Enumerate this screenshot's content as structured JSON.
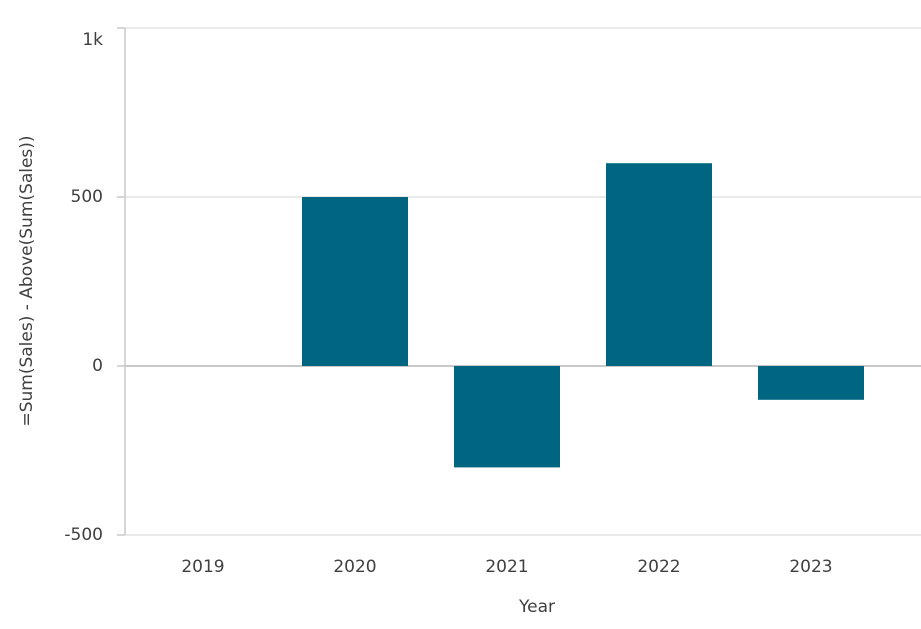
{
  "chart_data": {
    "type": "bar",
    "x_label": "Year",
    "y_label": "=Sum(Sales) - Above(Sum(Sales))",
    "categories": [
      "2019",
      "2020",
      "2021",
      "2022",
      "2023"
    ],
    "values": [
      0,
      500,
      -300,
      600,
      -100
    ],
    "color": "#006580",
    "ylim": [
      -500,
      1000
    ],
    "yticks": [
      -500,
      0,
      500,
      {
        "value": 1000,
        "label": "1k"
      }
    ],
    "grid": true
  }
}
